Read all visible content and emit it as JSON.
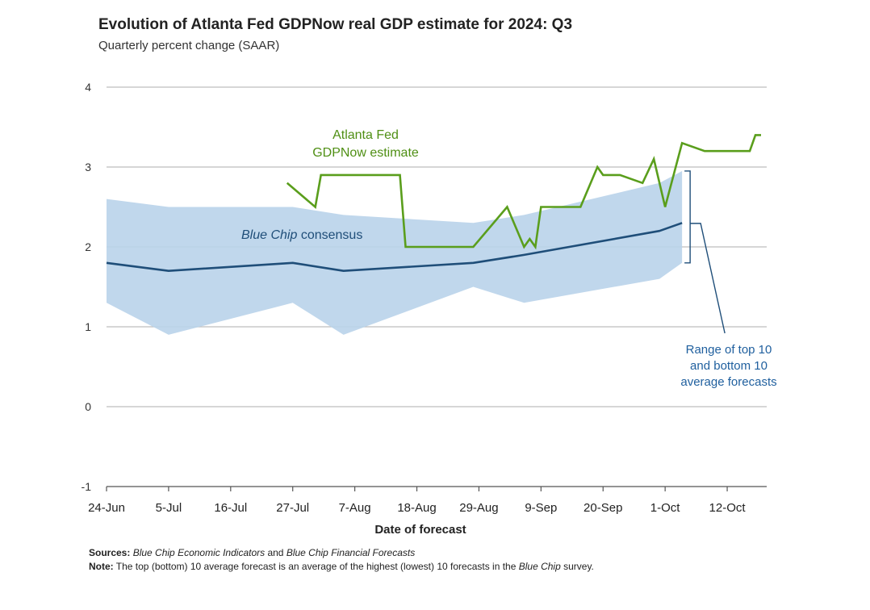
{
  "title": "Evolution of Atlanta Fed GDPNow real GDP estimate for 2024: Q3",
  "subtitle": "Quarterly percent change (SAAR)",
  "sources": {
    "label": "Sources:",
    "part1": "Blue Chip Economic Indicators",
    "part2": " and ",
    "part3": "Blue Chip Financial Forecasts"
  },
  "note": {
    "label": "Note:",
    "part1": " The top (bottom) 10 average forecast is an average of the highest (lowest) 10 forecasts in the ",
    "part2": "Blue Chip",
    "part3": " survey."
  },
  "chart_data": {
    "type": "line",
    "xlabel": "Date of forecast",
    "ylabel": "",
    "ylim": [
      -1,
      4
    ],
    "xlim": [
      "2024-06-24",
      "2024-10-19"
    ],
    "yticks": [
      -1,
      0,
      1,
      2,
      3,
      4
    ],
    "xticks": [
      {
        "date": "2024-06-24",
        "label": "24-Jun"
      },
      {
        "date": "2024-07-05",
        "label": "5-Jul"
      },
      {
        "date": "2024-07-16",
        "label": "16-Jul"
      },
      {
        "date": "2024-07-27",
        "label": "27-Jul"
      },
      {
        "date": "2024-08-07",
        "label": "7-Aug"
      },
      {
        "date": "2024-08-18",
        "label": "18-Aug"
      },
      {
        "date": "2024-08-29",
        "label": "29-Aug"
      },
      {
        "date": "2024-09-09",
        "label": "9-Sep"
      },
      {
        "date": "2024-09-20",
        "label": "20-Sep"
      },
      {
        "date": "2024-10-01",
        "label": "1-Oct"
      },
      {
        "date": "2024-10-12",
        "label": "12-Oct"
      }
    ],
    "grid": true,
    "series": [
      {
        "name": "Atlanta Fed GDPNow estimate",
        "label_lines": [
          "Atlanta Fed",
          "GDPNow estimate"
        ],
        "color": "#5a9e1c",
        "points": [
          [
            "2024-07-26",
            2.8
          ],
          [
            "2024-07-31",
            2.5
          ],
          [
            "2024-08-01",
            2.9
          ],
          [
            "2024-08-06",
            2.9
          ],
          [
            "2024-08-15",
            2.9
          ],
          [
            "2024-08-16",
            2.0
          ],
          [
            "2024-08-26",
            2.0
          ],
          [
            "2024-08-28",
            2.0
          ],
          [
            "2024-09-03",
            2.5
          ],
          [
            "2024-09-06",
            2.0
          ],
          [
            "2024-09-07",
            2.1
          ],
          [
            "2024-09-08",
            2.0
          ],
          [
            "2024-09-09",
            2.5
          ],
          [
            "2024-09-12",
            2.5
          ],
          [
            "2024-09-16",
            2.5
          ],
          [
            "2024-09-19",
            3.0
          ],
          [
            "2024-09-20",
            2.9
          ],
          [
            "2024-09-23",
            2.9
          ],
          [
            "2024-09-27",
            2.8
          ],
          [
            "2024-09-29",
            3.1
          ],
          [
            "2024-10-01",
            2.5
          ],
          [
            "2024-10-04",
            3.3
          ],
          [
            "2024-10-08",
            3.2
          ],
          [
            "2024-10-16",
            3.2
          ],
          [
            "2024-10-17",
            3.4
          ],
          [
            "2024-10-18",
            3.4
          ]
        ]
      },
      {
        "name": "Blue Chip consensus",
        "label_parts": [
          "Blue Chip",
          " consensus"
        ],
        "color": "#1f4e79",
        "points": [
          [
            "2024-06-24",
            1.8
          ],
          [
            "2024-07-05",
            1.7
          ],
          [
            "2024-07-27",
            1.8
          ],
          [
            "2024-08-05",
            1.7
          ],
          [
            "2024-08-28",
            1.8
          ],
          [
            "2024-09-06",
            1.9
          ],
          [
            "2024-09-30",
            2.2
          ],
          [
            "2024-10-04",
            2.3
          ]
        ]
      }
    ],
    "range_band": {
      "name": "Range of top 10 and bottom 10 average forecasts",
      "label_lines": [
        "Range of top 10",
        "and bottom 10",
        "average forecasts"
      ],
      "color": "#b9d3ea",
      "upper": [
        [
          "2024-06-24",
          2.6
        ],
        [
          "2024-07-05",
          2.5
        ],
        [
          "2024-07-27",
          2.5
        ],
        [
          "2024-08-05",
          2.4
        ],
        [
          "2024-08-28",
          2.3
        ],
        [
          "2024-09-06",
          2.4
        ],
        [
          "2024-09-30",
          2.8
        ],
        [
          "2024-10-04",
          2.95
        ]
      ],
      "lower": [
        [
          "2024-06-24",
          1.3
        ],
        [
          "2024-07-05",
          0.9
        ],
        [
          "2024-07-27",
          1.3
        ],
        [
          "2024-08-05",
          0.9
        ],
        [
          "2024-08-28",
          1.5
        ],
        [
          "2024-09-06",
          1.3
        ],
        [
          "2024-09-30",
          1.6
        ],
        [
          "2024-10-04",
          1.8
        ]
      ]
    }
  }
}
